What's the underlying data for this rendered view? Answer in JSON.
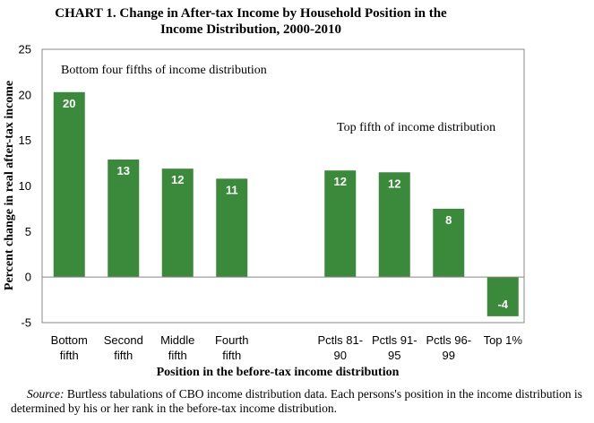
{
  "chart_data": {
    "type": "bar",
    "title_lines": [
      "CHART 1. Change in After-tax Income by Household Position in the",
      "Income Distribution,  2000-2010"
    ],
    "ylabel": "Percent change in real after-tax income",
    "xlabel": "Position in the before-tax income distribution",
    "ylim": [
      -5,
      25
    ],
    "yticks": [
      -5,
      0,
      5,
      10,
      15,
      20,
      25
    ],
    "grid": false,
    "bar_color": "#3b8a3b",
    "categories": [
      {
        "lines": [
          "Bottom",
          "fifth"
        ],
        "value": 20.3,
        "label": "20",
        "group": "bottom"
      },
      {
        "lines": [
          "Second",
          "fifth"
        ],
        "value": 12.9,
        "label": "13",
        "group": "bottom"
      },
      {
        "lines": [
          "Middle",
          "fifth"
        ],
        "value": 11.9,
        "label": "12",
        "group": "bottom"
      },
      {
        "lines": [
          "Fourth",
          "fifth"
        ],
        "value": 10.8,
        "label": "11",
        "group": "bottom"
      },
      {
        "lines": [
          "Pctls 81-",
          "90"
        ],
        "value": 11.7,
        "label": "12",
        "group": "top"
      },
      {
        "lines": [
          "Pctls 91-",
          "95"
        ],
        "value": 11.5,
        "label": "12",
        "group": "top"
      },
      {
        "lines": [
          "Pctls 96-",
          "99"
        ],
        "value": 7.5,
        "label": "8",
        "group": "top"
      },
      {
        "lines": [
          "Top 1%"
        ],
        "value": -4.3,
        "label": "-4",
        "group": "top"
      }
    ],
    "annotations": {
      "bottom_group": "Bottom four fifths of income distribution",
      "top_group": "Top fifth of income distribution"
    }
  },
  "source": {
    "label": "Source:",
    "text": " Burtless tabulations of CBO income distribution  data.  Each persons's position in the income distribution   is determined by his or her rank in the before-tax income distribution."
  }
}
